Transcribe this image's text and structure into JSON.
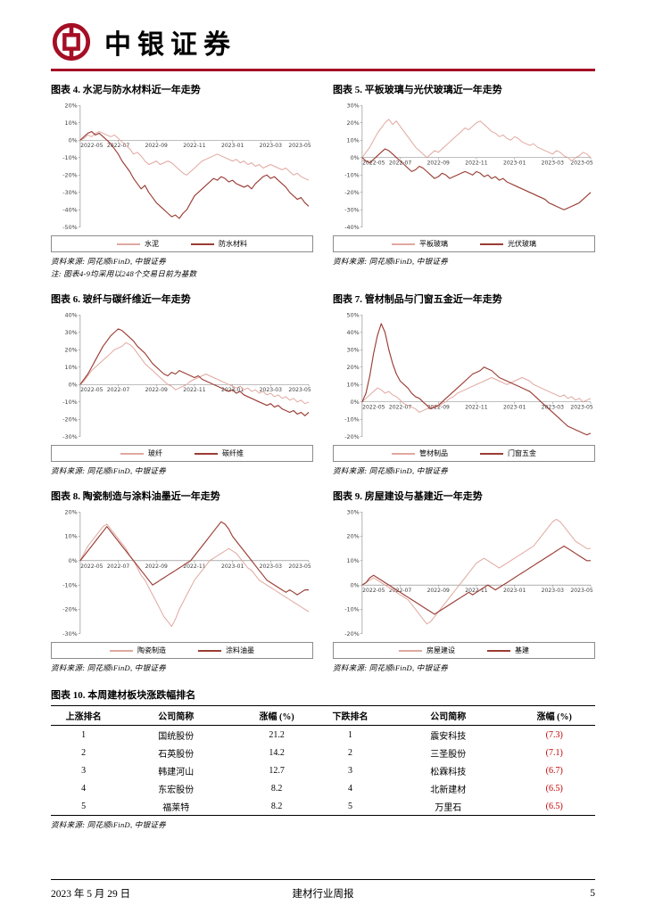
{
  "header": {
    "brand": "中银证券"
  },
  "colors": {
    "accent": "#a50e25",
    "series_light": "#e0a8a0",
    "series_dark": "#9a3d34",
    "negative": "#c00000",
    "axis": "#7f7f7f"
  },
  "chart_data": [
    {
      "type": "line",
      "title": "图表 4. 水泥与防水材料近一年走势",
      "source": "资料来源: 同花顺iFinD, 中银证券",
      "note": "注: 图表4-9均采用以248个交易日前为基数",
      "ymax": 20,
      "ymin": -50,
      "ystep": 10,
      "yticks": [
        "20%",
        "10%",
        "0%",
        "-10%",
        "-20%",
        "-30%",
        "-40%",
        "-50%"
      ],
      "xticks": [
        "2022-05",
        "2022-07",
        "2022-09",
        "2022-11",
        "2023-01",
        "2023-03",
        "2023-05"
      ],
      "series": [
        {
          "name": "水泥",
          "color": "#e0a8a0",
          "values": [
            0,
            1,
            3,
            2,
            4,
            5,
            4,
            3,
            2,
            3,
            1,
            -1,
            -3,
            -5,
            -8,
            -7,
            -9,
            -12,
            -14,
            -13,
            -12,
            -14,
            -13,
            -12,
            -13,
            -15,
            -17,
            -19,
            -20,
            -18,
            -16,
            -14,
            -12,
            -11,
            -10,
            -9,
            -8,
            -9,
            -10,
            -11,
            -12,
            -11,
            -13,
            -12,
            -14,
            -13,
            -15,
            -14,
            -16,
            -15,
            -14,
            -15,
            -16,
            -17,
            -16,
            -18,
            -20,
            -19,
            -21,
            -22,
            -23
          ]
        },
        {
          "name": "防水材料",
          "color": "#9a3d34",
          "values": [
            0,
            2,
            4,
            5,
            3,
            4,
            2,
            0,
            -2,
            -5,
            -8,
            -12,
            -15,
            -18,
            -22,
            -25,
            -28,
            -26,
            -30,
            -33,
            -36,
            -38,
            -40,
            -42,
            -44,
            -43,
            -45,
            -42,
            -40,
            -36,
            -32,
            -30,
            -28,
            -26,
            -24,
            -22,
            -23,
            -21,
            -22,
            -24,
            -23,
            -25,
            -26,
            -27,
            -26,
            -28,
            -25,
            -23,
            -21,
            -20,
            -22,
            -21,
            -23,
            -25,
            -27,
            -30,
            -32,
            -34,
            -33,
            -36,
            -38
          ]
        }
      ]
    },
    {
      "type": "line",
      "title": "图表 5. 平板玻璃与光伏玻璃近一年走势",
      "source": "资料来源: 同花顺iFinD, 中银证券",
      "ymax": 30,
      "ymin": -40,
      "ystep": 10,
      "yticks": [
        "30%",
        "20%",
        "10%",
        "0%",
        "-10%",
        "-20%",
        "-30%",
        "-40%"
      ],
      "xticks": [
        "2022-05",
        "2022-07",
        "2022-09",
        "2022-11",
        "2023-01",
        "2023-03",
        "2023-05"
      ],
      "series": [
        {
          "name": "平板玻璃",
          "color": "#e0a8a0",
          "values": [
            0,
            3,
            6,
            10,
            14,
            17,
            20,
            22,
            19,
            21,
            18,
            15,
            12,
            9,
            6,
            4,
            2,
            0,
            2,
            4,
            3,
            5,
            7,
            9,
            11,
            13,
            15,
            17,
            16,
            18,
            20,
            21,
            19,
            17,
            15,
            14,
            12,
            13,
            11,
            10,
            12,
            11,
            9,
            8,
            7,
            8,
            6,
            5,
            4,
            3,
            2,
            4,
            3,
            1,
            0,
            -2,
            0,
            1,
            3,
            2,
            0
          ]
        },
        {
          "name": "光伏玻璃",
          "color": "#9a3d34",
          "values": [
            0,
            -2,
            -3,
            -1,
            1,
            3,
            5,
            4,
            2,
            0,
            -2,
            -4,
            -6,
            -8,
            -7,
            -5,
            -6,
            -8,
            -10,
            -12,
            -11,
            -9,
            -10,
            -12,
            -11,
            -10,
            -9,
            -8,
            -9,
            -10,
            -8,
            -9,
            -11,
            -10,
            -12,
            -11,
            -13,
            -12,
            -14,
            -15,
            -16,
            -17,
            -18,
            -19,
            -20,
            -21,
            -22,
            -23,
            -24,
            -26,
            -27,
            -28,
            -29,
            -30,
            -29,
            -28,
            -27,
            -26,
            -24,
            -22,
            -20
          ]
        }
      ]
    },
    {
      "type": "line",
      "title": "图表 6. 玻纤与碳纤维近一年走势",
      "source": "资料来源: 同花顺iFinD, 中银证券",
      "ymax": 40,
      "ymin": -30,
      "ystep": 10,
      "yticks": [
        "40%",
        "30%",
        "20%",
        "10%",
        "0%",
        "-10%",
        "-20%",
        "-30%"
      ],
      "xticks": [
        "2022-05",
        "2022-07",
        "2022-09",
        "2022-11",
        "2023-01",
        "2023-03",
        "2023-05"
      ],
      "series": [
        {
          "name": "玻纤",
          "color": "#e0a8a0",
          "values": [
            0,
            2,
            5,
            8,
            10,
            12,
            14,
            16,
            18,
            20,
            21,
            22,
            24,
            23,
            21,
            18,
            15,
            12,
            10,
            8,
            6,
            4,
            2,
            0,
            -1,
            -3,
            -2,
            -1,
            0,
            2,
            3,
            4,
            5,
            6,
            5,
            4,
            3,
            2,
            1,
            0,
            -1,
            -2,
            -1,
            -3,
            -2,
            -4,
            -3,
            -5,
            -4,
            -6,
            -5,
            -7,
            -6,
            -8,
            -7,
            -9,
            -8,
            -10,
            -9,
            -11,
            -10
          ]
        },
        {
          "name": "碳纤维",
          "color": "#9a3d34",
          "values": [
            0,
            3,
            6,
            10,
            14,
            18,
            22,
            25,
            28,
            30,
            32,
            31,
            29,
            27,
            25,
            22,
            20,
            18,
            15,
            12,
            10,
            8,
            6,
            5,
            7,
            6,
            8,
            7,
            6,
            5,
            4,
            5,
            3,
            2,
            1,
            0,
            -1,
            -2,
            -3,
            -4,
            -3,
            -5,
            -4,
            -6,
            -7,
            -8,
            -9,
            -10,
            -11,
            -12,
            -11,
            -13,
            -12,
            -14,
            -15,
            -16,
            -15,
            -17,
            -16,
            -18,
            -16
          ]
        }
      ]
    },
    {
      "type": "line",
      "title": "图表 7. 管材制品与门窗五金近一年走势",
      "source": "资料来源: 同花顺iFinD, 中银证券",
      "ymax": 50,
      "ymin": -20,
      "ystep": 10,
      "yticks": [
        "50%",
        "40%",
        "30%",
        "20%",
        "10%",
        "0%",
        "-10%",
        "-20%"
      ],
      "xticks": [
        "2022-05",
        "2022-07",
        "2022-09",
        "2022-11",
        "2023-01",
        "2023-03",
        "2023-05"
      ],
      "series": [
        {
          "name": "管材制品",
          "color": "#e0a8a0",
          "values": [
            0,
            2,
            4,
            6,
            8,
            7,
            5,
            6,
            4,
            3,
            1,
            -1,
            -2,
            -3,
            -4,
            -6,
            -5,
            -4,
            -3,
            -2,
            -3,
            -1,
            0,
            2,
            3,
            5,
            6,
            7,
            8,
            9,
            10,
            11,
            12,
            13,
            14,
            13,
            12,
            11,
            10,
            11,
            12,
            13,
            14,
            13,
            12,
            10,
            9,
            8,
            7,
            6,
            5,
            4,
            3,
            4,
            2,
            3,
            1,
            2,
            0,
            1,
            2
          ]
        },
        {
          "name": "门窗五金",
          "color": "#9a3d34",
          "values": [
            0,
            5,
            15,
            28,
            38,
            45,
            40,
            30,
            22,
            16,
            12,
            10,
            8,
            5,
            3,
            2,
            0,
            -2,
            -4,
            -3,
            -2,
            0,
            2,
            4,
            6,
            8,
            10,
            12,
            14,
            16,
            17,
            18,
            20,
            19,
            18,
            16,
            14,
            13,
            12,
            11,
            10,
            9,
            8,
            7,
            6,
            4,
            2,
            0,
            -2,
            -4,
            -6,
            -8,
            -10,
            -12,
            -14,
            -15,
            -16,
            -17,
            -18,
            -19,
            -18
          ]
        }
      ]
    },
    {
      "type": "line",
      "title": "图表 8. 陶瓷制造与涂料油墨近一年走势",
      "source": "资料来源: 同花顺iFinD, 中银证券",
      "ymax": 20,
      "ymin": -30,
      "ystep": 10,
      "yticks": [
        "20%",
        "10%",
        "0%",
        "-10%",
        "-20%",
        "-30%"
      ],
      "xticks": [
        "2022-05",
        "2022-07",
        "2022-09",
        "2022-11",
        "2023-01",
        "2023-03",
        "2023-05"
      ],
      "series": [
        {
          "name": "陶瓷制造",
          "color": "#e0a8a0",
          "values": [
            0,
            3,
            6,
            8,
            10,
            12,
            14,
            15,
            13,
            11,
            9,
            7,
            5,
            2,
            0,
            -3,
            -6,
            -8,
            -11,
            -14,
            -17,
            -20,
            -23,
            -25,
            -27,
            -24,
            -20,
            -17,
            -14,
            -11,
            -8,
            -6,
            -4,
            -2,
            0,
            1,
            2,
            3,
            4,
            5,
            4,
            3,
            1,
            -1,
            -3,
            -4,
            -6,
            -8,
            -9,
            -10,
            -11,
            -12,
            -13,
            -14,
            -15,
            -16,
            -17,
            -18,
            -19,
            -20,
            -21
          ]
        },
        {
          "name": "涂料油墨",
          "color": "#9a3d34",
          "values": [
            0,
            2,
            4,
            6,
            8,
            10,
            12,
            14,
            12,
            10,
            8,
            6,
            4,
            2,
            0,
            -2,
            -4,
            -6,
            -8,
            -10,
            -9,
            -8,
            -7,
            -6,
            -5,
            -4,
            -3,
            -2,
            -1,
            0,
            2,
            4,
            6,
            8,
            10,
            12,
            14,
            16,
            15,
            13,
            10,
            8,
            6,
            4,
            2,
            0,
            -2,
            -4,
            -6,
            -8,
            -9,
            -10,
            -11,
            -12,
            -13,
            -12,
            -13,
            -14,
            -13,
            -12,
            -12
          ]
        }
      ]
    },
    {
      "type": "line",
      "title": "图表 9. 房屋建设与基建近一年走势",
      "source": "资料来源: 同花顺iFinD, 中银证券",
      "ymax": 30,
      "ymin": -20,
      "ystep": 10,
      "yticks": [
        "30%",
        "20%",
        "10%",
        "0%",
        "-10%",
        "-20%"
      ],
      "xticks": [
        "2022-05",
        "2022-07",
        "2022-09",
        "2022-11",
        "2023-01",
        "2023-03",
        "2023-05"
      ],
      "series": [
        {
          "name": "房屋建设",
          "color": "#e0a8a0",
          "values": [
            0,
            1,
            2,
            3,
            2,
            1,
            0,
            -1,
            -2,
            -3,
            -4,
            -5,
            -6,
            -8,
            -10,
            -12,
            -14,
            -16,
            -15,
            -13,
            -11,
            -9,
            -7,
            -5,
            -3,
            -1,
            1,
            3,
            5,
            7,
            9,
            10,
            11,
            10,
            9,
            8,
            7,
            8,
            9,
            10,
            11,
            12,
            13,
            14,
            15,
            16,
            18,
            20,
            22,
            24,
            26,
            27,
            26,
            24,
            22,
            20,
            18,
            17,
            16,
            15,
            15
          ]
        },
        {
          "name": "基建",
          "color": "#9a3d34",
          "values": [
            0,
            1,
            3,
            4,
            3,
            2,
            1,
            0,
            -1,
            -2,
            -3,
            -4,
            -5,
            -6,
            -7,
            -8,
            -9,
            -10,
            -11,
            -12,
            -11,
            -10,
            -9,
            -8,
            -7,
            -6,
            -5,
            -4,
            -3,
            -4,
            -3,
            -2,
            -1,
            0,
            -1,
            -2,
            -1,
            0,
            1,
            2,
            3,
            4,
            5,
            6,
            7,
            8,
            9,
            10,
            11,
            12,
            13,
            14,
            15,
            16,
            15,
            14,
            13,
            12,
            11,
            10,
            10
          ]
        }
      ]
    }
  ],
  "table": {
    "title": "图表 10. 本周建材板块涨跌幅排名",
    "source": "资料来源: 同花顺iFinD, 中银证券",
    "headers": [
      "上涨排名",
      "公司简称",
      "涨幅 (%)",
      "下跌排名",
      "公司简称",
      "涨幅 (%)"
    ],
    "rows": [
      [
        "1",
        "国统股份",
        "21.2",
        "1",
        "震安科技",
        "(7.3)"
      ],
      [
        "2",
        "石英股份",
        "14.2",
        "2",
        "三圣股份",
        "(7.1)"
      ],
      [
        "3",
        "韩建河山",
        "12.7",
        "3",
        "松霖科技",
        "(6.7)"
      ],
      [
        "4",
        "东宏股份",
        "8.2",
        "4",
        "北新建材",
        "(6.5)"
      ],
      [
        "5",
        "福莱特",
        "8.2",
        "5",
        "万里石",
        "(6.5)"
      ]
    ]
  },
  "footer": {
    "date": "2023 年 5 月 29 日",
    "center": "建材行业周报",
    "page": "5"
  }
}
